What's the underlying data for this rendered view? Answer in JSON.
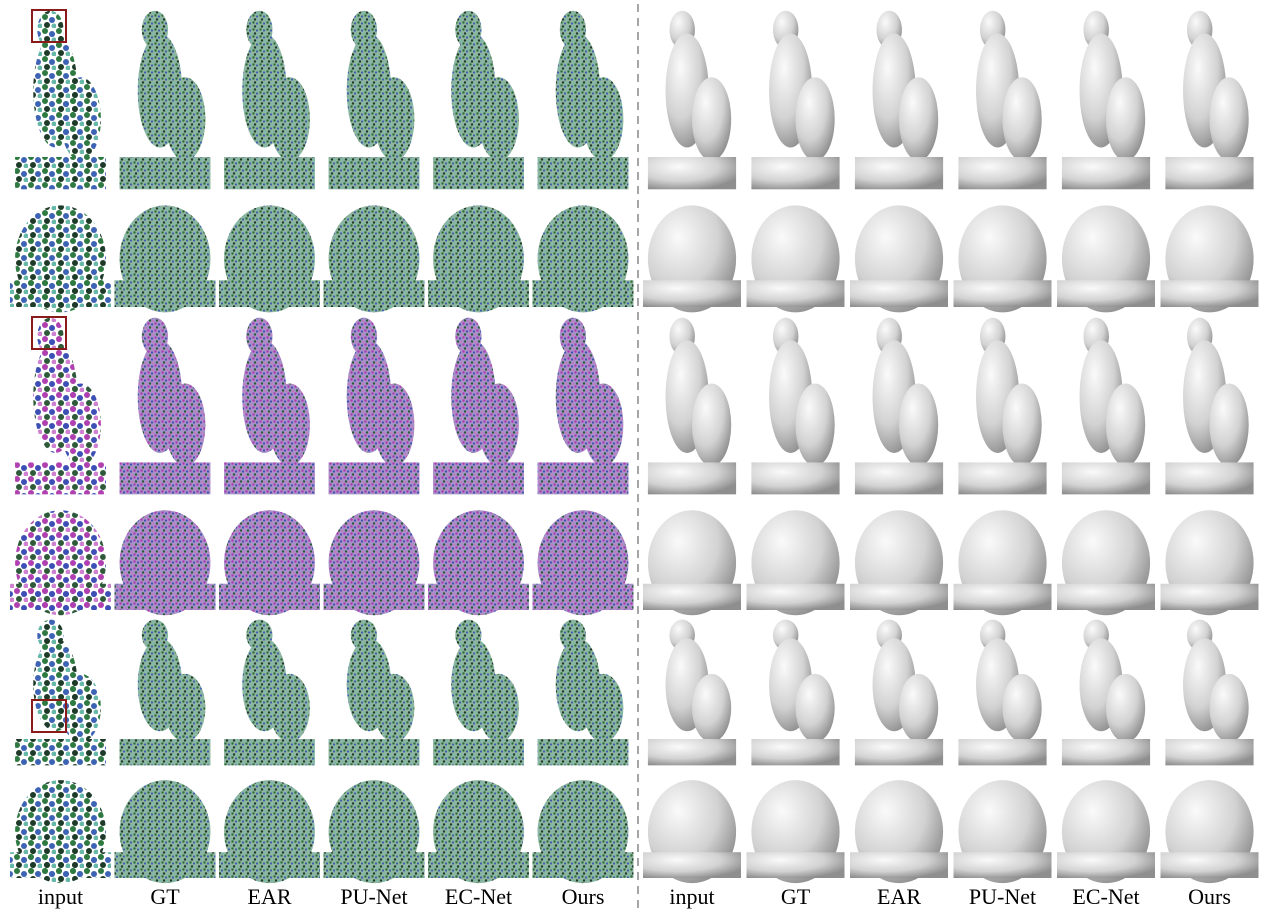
{
  "figure": {
    "left_columns": [
      "input",
      "GT",
      "EAR",
      "PU-Net",
      "EC-Net",
      "Ours"
    ],
    "right_columns": [
      "input",
      "GT",
      "EAR",
      "PU-Net",
      "EC-Net",
      "Ours"
    ]
  }
}
